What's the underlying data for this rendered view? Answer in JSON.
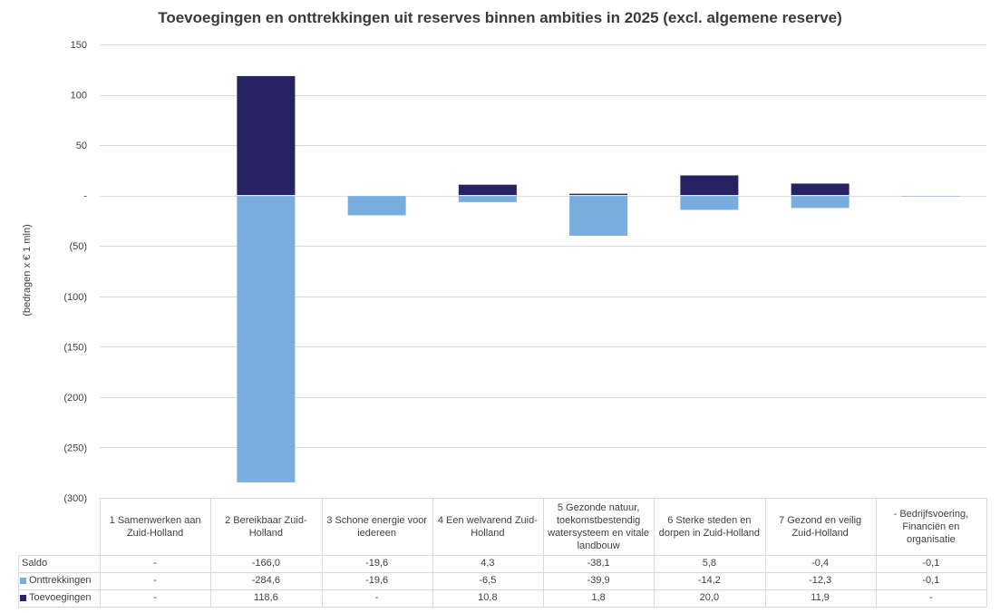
{
  "chart_data": {
    "type": "bar",
    "stacked": true,
    "title": "Toevoegingen en onttrekkingen uit reserves binnen ambities in 2025 (excl. algemene reserve)",
    "ylabel": "(bedragen x € 1 mln)",
    "ylim": [
      -300,
      150
    ],
    "yticks": [
      150,
      100,
      50,
      0,
      -50,
      -100,
      -150,
      -200,
      -250,
      -300
    ],
    "ytick_labels": [
      "150",
      "100",
      "50",
      "-",
      "(50)",
      "(100)",
      "(150)",
      "(200)",
      "(250)",
      "(300)"
    ],
    "grid": true,
    "categories": [
      "1 Samenwerken aan Zuid-Holland",
      "2 Bereikbaar Zuid-Holland",
      "3 Schone energie voor iedereen",
      "4 Een welvarend Zuid-Holland",
      "5 Gezonde natuur, toekomstbestendig watersysteem en vitale landbouw",
      "6 Sterke steden en dorpen in Zuid-Holland",
      "7 Gezond en veilig Zuid-Holland",
      "- Bedrijfsvoering, Financiën en organisatie"
    ],
    "series": [
      {
        "name": "Onttrekkingen",
        "color": "#7aaddf",
        "values": [
          0,
          -284.6,
          -19.6,
          -6.5,
          -39.9,
          -14.2,
          -12.3,
          -0.1
        ],
        "labels": [
          "-",
          "-284,6",
          "-19,6",
          "-6,5",
          "-39,9",
          "-14,2",
          "-12,3",
          "-0,1"
        ]
      },
      {
        "name": "Toevoegingen",
        "color": "#262363",
        "values": [
          0,
          118.6,
          0,
          10.8,
          1.8,
          20.0,
          11.9,
          0
        ],
        "labels": [
          "-",
          "118,6",
          "-",
          "10,8",
          "1,8",
          "20,0",
          "11,9",
          "-"
        ]
      }
    ],
    "table_rows": [
      {
        "name": "Saldo",
        "labels": [
          "-",
          "-166,0",
          "-19,6",
          "4,3",
          "-38,1",
          "5,8",
          "-0,4",
          "-0,1"
        ]
      }
    ]
  }
}
